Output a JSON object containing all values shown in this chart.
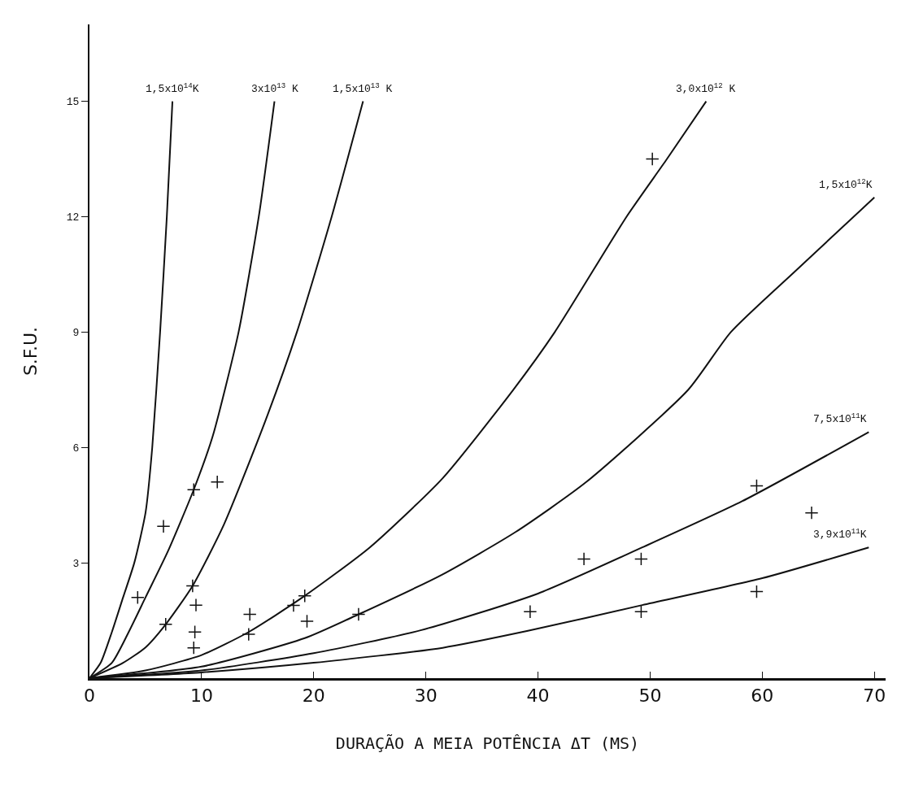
{
  "chart_data": {
    "type": "line",
    "xlabel": "DURAÇÃO A MEIA POTÊNCIA ΔT (MS)",
    "ylabel": "S.F.U.",
    "xlim": [
      0,
      71
    ],
    "xticks": [
      0,
      10,
      20,
      30,
      40,
      50,
      60,
      70
    ],
    "ylim": [
      0,
      17
    ],
    "yticks": [
      3,
      6,
      9,
      12,
      15
    ],
    "grid": false,
    "legend": false,
    "marker": "none",
    "line_style": "solid",
    "series": [
      {
        "name": "1,5x10$^{14}$K",
        "color": "#111111",
        "x": [
          0,
          1,
          2,
          3,
          4,
          5,
          5.6,
          6.3,
          6.9,
          7.4
        ],
        "values": [
          0,
          0.4,
          1.2,
          2.1,
          3,
          4.3,
          6,
          9,
          12,
          15
        ]
      },
      {
        "name": "3x10$^{13}$ K",
        "color": "#111111",
        "x": [
          0,
          2,
          3.5,
          5,
          7,
          9.3,
          11,
          13.3,
          15.1,
          16.5
        ],
        "values": [
          0,
          0.4,
          1.2,
          2.1,
          3.3,
          4.9,
          6.3,
          9,
          12,
          15
        ]
      },
      {
        "name": "1,5x10$^{13}$ K",
        "color": "#111111",
        "x": [
          0,
          3,
          5,
          6.8,
          9.2,
          12,
          15.7,
          18.5,
          21.6,
          24.4
        ],
        "values": [
          0,
          0.4,
          0.8,
          1.4,
          2.4,
          4,
          6.7,
          9,
          12,
          15
        ]
      },
      {
        "name": "3,0x10$^{12}$ K",
        "color": "#111111",
        "x": [
          0,
          5,
          10,
          14.2,
          19,
          25,
          31.5,
          37.8,
          41.5,
          47.9,
          51.5,
          55
        ],
        "values": [
          0,
          0.2,
          0.6,
          1.2,
          2.1,
          3.4,
          5.2,
          7.5,
          9,
          12,
          13.5,
          15
        ]
      },
      {
        "name": "1,5x10$^{12}$K",
        "color": "#111111",
        "x": [
          0,
          10,
          19.2,
          24,
          31.5,
          38,
          44.3,
          53.4,
          57.2,
          63,
          70
        ],
        "values": [
          0,
          0.3,
          1.04,
          1.66,
          2.7,
          3.8,
          5.1,
          7.5,
          9,
          10.6,
          12.5
        ]
      },
      {
        "name": "7,5x10$^{11}$K",
        "color": "#111111",
        "x": [
          0,
          10,
          20,
          29.6,
          40,
          49.3,
          58.2,
          69.5
        ],
        "values": [
          0,
          0.2,
          0.65,
          1.25,
          2.2,
          3.4,
          4.6,
          6.4
        ]
      },
      {
        "name": "3,9x10$^{11}$K",
        "color": "#111111",
        "x": [
          0,
          10,
          20,
          31.5,
          39.1,
          49.3,
          60,
          69.5
        ],
        "values": [
          0,
          0.15,
          0.4,
          0.79,
          1.23,
          1.9,
          2.6,
          3.4
        ]
      },
      {
        "type": "scatter",
        "marker": "cross",
        "color": "#111111",
        "x": [
          4.3,
          6.6,
          6.8,
          9.3,
          11.4,
          9.2,
          9.5,
          9.4,
          9.3,
          14.3,
          14.2,
          18.2,
          19.2,
          19.4,
          24,
          39.3,
          44.1,
          49.2,
          49.2,
          59.5,
          64.4,
          59.5,
          50.2
        ],
        "values": [
          2.1,
          3.95,
          1.4,
          4.9,
          5.1,
          2.4,
          1.9,
          1.2,
          0.79,
          1.66,
          1.14,
          1.89,
          2.14,
          1.48,
          1.66,
          1.73,
          3.1,
          3.1,
          1.73,
          5.0,
          4.3,
          2.25,
          13.5
        ]
      }
    ]
  }
}
